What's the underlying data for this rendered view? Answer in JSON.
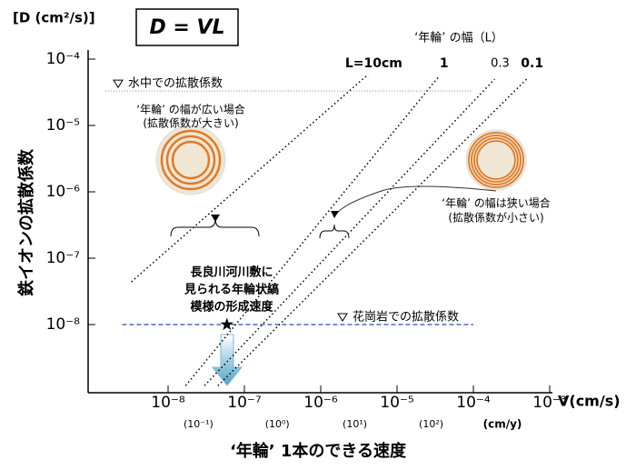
{
  "chart_data": {
    "type": "line",
    "title": "D = VL",
    "y_unit": "[D (cm²/s)]",
    "ylabel": "鉄イオンの拡散係数",
    "xlabel": "‘年輪’ 1本のできる速度",
    "xunit": "V(cm/s)",
    "x2unit": "(cm/y)",
    "legend_title": "‘年輪’ の幅（L）",
    "xscale": "log",
    "yscale": "log",
    "xlim": [
      1e-09,
      0.001
    ],
    "ylim": [
      1e-09,
      0.0001
    ],
    "xticks": [
      {
        "value": 1e-08,
        "label": "10⁻⁸"
      },
      {
        "value": 1e-07,
        "label": "10⁻⁷"
      },
      {
        "value": 1e-06,
        "label": "10⁻⁶"
      },
      {
        "value": 1e-05,
        "label": "10⁻⁵"
      },
      {
        "value": 0.0001,
        "label": "10⁻⁴"
      },
      {
        "value": 0.001,
        "label": "10⁻³"
      }
    ],
    "x2ticks": [
      {
        "value": 2.5e-08,
        "label": "(10⁻¹)"
      },
      {
        "value": 2.7e-07,
        "label": "(10⁰)"
      },
      {
        "value": 2.8e-06,
        "label": "(10¹)"
      },
      {
        "value": 2.8e-05,
        "label": "(10²)"
      }
    ],
    "yticks": [
      {
        "value": 1e-08,
        "label": "10⁻⁸"
      },
      {
        "value": 1e-07,
        "label": "10⁻⁷"
      },
      {
        "value": 1e-06,
        "label": "10⁻⁶"
      },
      {
        "value": 1e-05,
        "label": "10⁻⁵"
      },
      {
        "value": 0.0001,
        "label": "10⁻⁴"
      }
    ],
    "series": [
      {
        "name": "L=10cm",
        "color": "#000000",
        "x": [
          3.3e-09,
          4.2e-06
        ],
        "values": [
          4.4e-08,
          5.9e-05
        ]
      },
      {
        "name": "1",
        "color": "#000000",
        "x": [
          1.7e-08,
          3.5e-05
        ],
        "values": [
          1.2e-09,
          5.4e-05
        ]
      },
      {
        "name": "0.3",
        "color": "#000000",
        "x": [
          3e-08,
          0.00019
        ],
        "values": [
          1.2e-09,
          5e-05
        ]
      },
      {
        "name": "0.1",
        "color": "#000000",
        "x": [
          4.5e-08,
          0.0005
        ],
        "values": [
          1.2e-09,
          5e-05
        ]
      }
    ],
    "reference_lines": [
      {
        "label": "水中での拡散係数",
        "value": 3.3e-05,
        "color": "#888888",
        "x": [
          1.5e-09,
          0.0001
        ]
      },
      {
        "label": "花崗岩での拡散係数",
        "value": 1e-08,
        "color": "#1f4fbf",
        "x": [
          2.5e-09,
          0.0001
        ]
      }
    ],
    "point": {
      "x": 5.9e-08,
      "y": 1e-08,
      "label": [
        "長良川河川敷に",
        "見られる年輪状縞",
        "模様の形成速度"
      ]
    },
    "annotations": [
      "‘年輪’ の幅が広い場合",
      "(拡散係数が大きい)",
      "‘年輪’ の幅は狭い場合",
      "(拡散係数が小さい)"
    ]
  }
}
